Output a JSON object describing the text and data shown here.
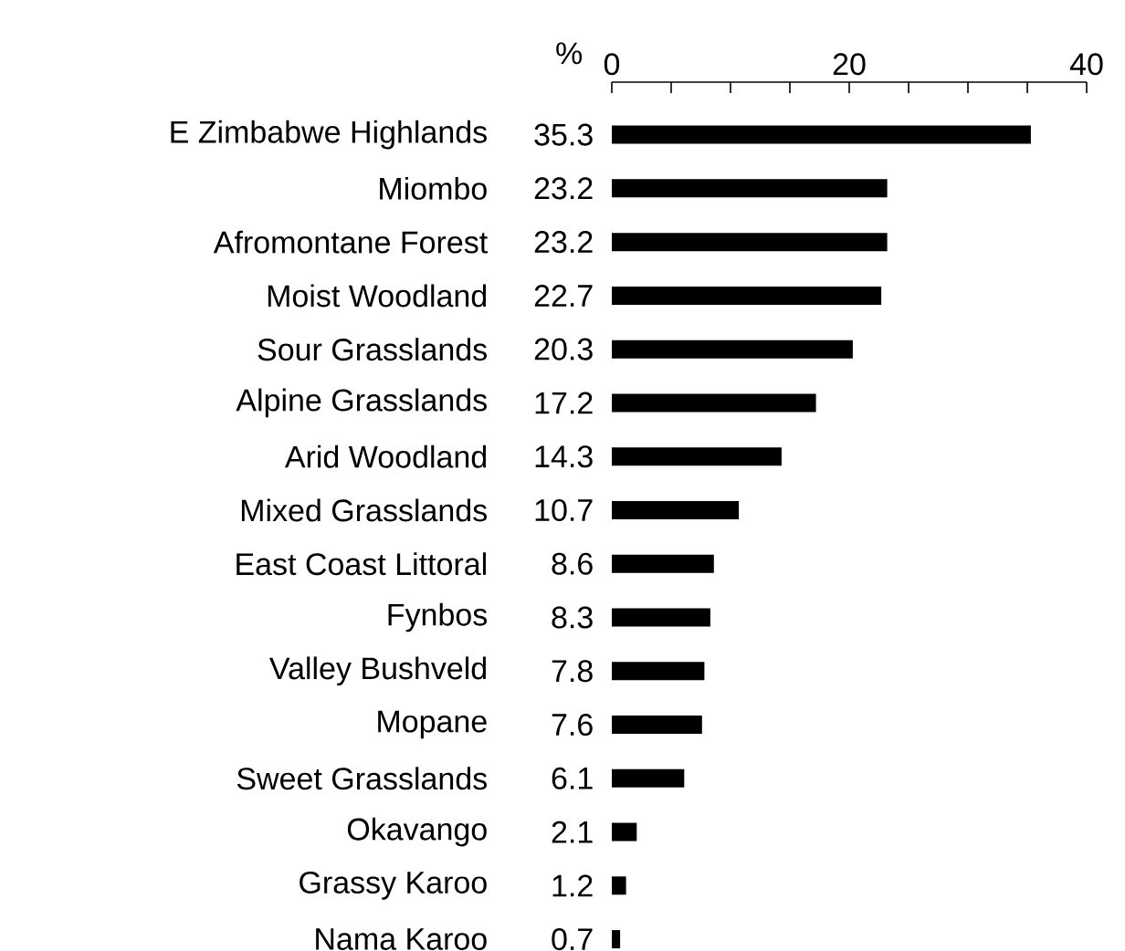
{
  "chart_data": {
    "type": "bar",
    "orientation": "horizontal",
    "xlabel": "%",
    "categories": [
      "E Zimbabwe Highlands",
      "Miombo",
      "Afromontane Forest",
      "Moist Woodland",
      "Sour Grasslands",
      "Alpine Grasslands",
      "Arid Woodland",
      "Mixed Grasslands",
      "East Coast Littoral",
      "Fynbos",
      "Valley Bushveld",
      "Mopane",
      "Sweet Grasslands",
      "Okavango",
      "Grassy Karoo",
      "Nama Karoo"
    ],
    "values": [
      35.3,
      23.2,
      23.2,
      22.7,
      20.3,
      17.2,
      14.3,
      10.7,
      8.6,
      8.3,
      7.8,
      7.6,
      6.1,
      2.1,
      1.2,
      0.7
    ],
    "color": "#000000",
    "data_labels": true,
    "xlim": [
      0,
      40
    ],
    "xticks": [
      0,
      {
        "value": 5,
        "label": null
      },
      {
        "value": 10,
        "label": null
      },
      {
        "value": 15,
        "label": null
      },
      20,
      {
        "value": 25,
        "label": null
      },
      {
        "value": 30,
        "label": null
      },
      {
        "value": 35,
        "label": null
      },
      40
    ]
  }
}
